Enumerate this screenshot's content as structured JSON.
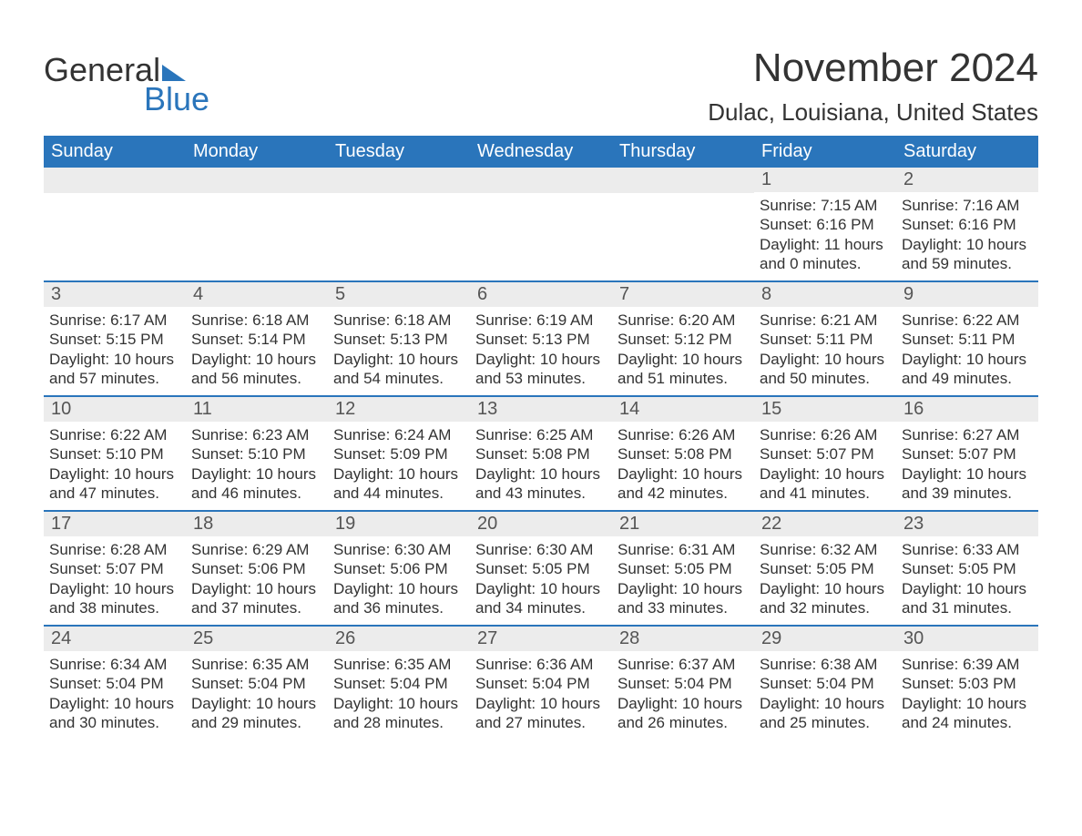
{
  "logo": {
    "text1": "General",
    "text2": "Blue",
    "accent_color": "#2a75bb"
  },
  "title": "November 2024",
  "location": "Dulac, Louisiana, United States",
  "colors": {
    "header_bg": "#2a75bb",
    "header_text": "#ffffff",
    "daynum_bg": "#ececec",
    "daynum_text": "#555555",
    "body_text": "#333333",
    "rule": "#2a75bb",
    "page_bg": "#ffffff"
  },
  "weekdays": [
    "Sunday",
    "Monday",
    "Tuesday",
    "Wednesday",
    "Thursday",
    "Friday",
    "Saturday"
  ],
  "weeks": [
    [
      {
        "n": "",
        "sunrise": "",
        "sunset": "",
        "daylight": ""
      },
      {
        "n": "",
        "sunrise": "",
        "sunset": "",
        "daylight": ""
      },
      {
        "n": "",
        "sunrise": "",
        "sunset": "",
        "daylight": ""
      },
      {
        "n": "",
        "sunrise": "",
        "sunset": "",
        "daylight": ""
      },
      {
        "n": "",
        "sunrise": "",
        "sunset": "",
        "daylight": ""
      },
      {
        "n": "1",
        "sunrise": "Sunrise: 7:15 AM",
        "sunset": "Sunset: 6:16 PM",
        "daylight": "Daylight: 11 hours and 0 minutes."
      },
      {
        "n": "2",
        "sunrise": "Sunrise: 7:16 AM",
        "sunset": "Sunset: 6:16 PM",
        "daylight": "Daylight: 10 hours and 59 minutes."
      }
    ],
    [
      {
        "n": "3",
        "sunrise": "Sunrise: 6:17 AM",
        "sunset": "Sunset: 5:15 PM",
        "daylight": "Daylight: 10 hours and 57 minutes."
      },
      {
        "n": "4",
        "sunrise": "Sunrise: 6:18 AM",
        "sunset": "Sunset: 5:14 PM",
        "daylight": "Daylight: 10 hours and 56 minutes."
      },
      {
        "n": "5",
        "sunrise": "Sunrise: 6:18 AM",
        "sunset": "Sunset: 5:13 PM",
        "daylight": "Daylight: 10 hours and 54 minutes."
      },
      {
        "n": "6",
        "sunrise": "Sunrise: 6:19 AM",
        "sunset": "Sunset: 5:13 PM",
        "daylight": "Daylight: 10 hours and 53 minutes."
      },
      {
        "n": "7",
        "sunrise": "Sunrise: 6:20 AM",
        "sunset": "Sunset: 5:12 PM",
        "daylight": "Daylight: 10 hours and 51 minutes."
      },
      {
        "n": "8",
        "sunrise": "Sunrise: 6:21 AM",
        "sunset": "Sunset: 5:11 PM",
        "daylight": "Daylight: 10 hours and 50 minutes."
      },
      {
        "n": "9",
        "sunrise": "Sunrise: 6:22 AM",
        "sunset": "Sunset: 5:11 PM",
        "daylight": "Daylight: 10 hours and 49 minutes."
      }
    ],
    [
      {
        "n": "10",
        "sunrise": "Sunrise: 6:22 AM",
        "sunset": "Sunset: 5:10 PM",
        "daylight": "Daylight: 10 hours and 47 minutes."
      },
      {
        "n": "11",
        "sunrise": "Sunrise: 6:23 AM",
        "sunset": "Sunset: 5:10 PM",
        "daylight": "Daylight: 10 hours and 46 minutes."
      },
      {
        "n": "12",
        "sunrise": "Sunrise: 6:24 AM",
        "sunset": "Sunset: 5:09 PM",
        "daylight": "Daylight: 10 hours and 44 minutes."
      },
      {
        "n": "13",
        "sunrise": "Sunrise: 6:25 AM",
        "sunset": "Sunset: 5:08 PM",
        "daylight": "Daylight: 10 hours and 43 minutes."
      },
      {
        "n": "14",
        "sunrise": "Sunrise: 6:26 AM",
        "sunset": "Sunset: 5:08 PM",
        "daylight": "Daylight: 10 hours and 42 minutes."
      },
      {
        "n": "15",
        "sunrise": "Sunrise: 6:26 AM",
        "sunset": "Sunset: 5:07 PM",
        "daylight": "Daylight: 10 hours and 41 minutes."
      },
      {
        "n": "16",
        "sunrise": "Sunrise: 6:27 AM",
        "sunset": "Sunset: 5:07 PM",
        "daylight": "Daylight: 10 hours and 39 minutes."
      }
    ],
    [
      {
        "n": "17",
        "sunrise": "Sunrise: 6:28 AM",
        "sunset": "Sunset: 5:07 PM",
        "daylight": "Daylight: 10 hours and 38 minutes."
      },
      {
        "n": "18",
        "sunrise": "Sunrise: 6:29 AM",
        "sunset": "Sunset: 5:06 PM",
        "daylight": "Daylight: 10 hours and 37 minutes."
      },
      {
        "n": "19",
        "sunrise": "Sunrise: 6:30 AM",
        "sunset": "Sunset: 5:06 PM",
        "daylight": "Daylight: 10 hours and 36 minutes."
      },
      {
        "n": "20",
        "sunrise": "Sunrise: 6:30 AM",
        "sunset": "Sunset: 5:05 PM",
        "daylight": "Daylight: 10 hours and 34 minutes."
      },
      {
        "n": "21",
        "sunrise": "Sunrise: 6:31 AM",
        "sunset": "Sunset: 5:05 PM",
        "daylight": "Daylight: 10 hours and 33 minutes."
      },
      {
        "n": "22",
        "sunrise": "Sunrise: 6:32 AM",
        "sunset": "Sunset: 5:05 PM",
        "daylight": "Daylight: 10 hours and 32 minutes."
      },
      {
        "n": "23",
        "sunrise": "Sunrise: 6:33 AM",
        "sunset": "Sunset: 5:05 PM",
        "daylight": "Daylight: 10 hours and 31 minutes."
      }
    ],
    [
      {
        "n": "24",
        "sunrise": "Sunrise: 6:34 AM",
        "sunset": "Sunset: 5:04 PM",
        "daylight": "Daylight: 10 hours and 30 minutes."
      },
      {
        "n": "25",
        "sunrise": "Sunrise: 6:35 AM",
        "sunset": "Sunset: 5:04 PM",
        "daylight": "Daylight: 10 hours and 29 minutes."
      },
      {
        "n": "26",
        "sunrise": "Sunrise: 6:35 AM",
        "sunset": "Sunset: 5:04 PM",
        "daylight": "Daylight: 10 hours and 28 minutes."
      },
      {
        "n": "27",
        "sunrise": "Sunrise: 6:36 AM",
        "sunset": "Sunset: 5:04 PM",
        "daylight": "Daylight: 10 hours and 27 minutes."
      },
      {
        "n": "28",
        "sunrise": "Sunrise: 6:37 AM",
        "sunset": "Sunset: 5:04 PM",
        "daylight": "Daylight: 10 hours and 26 minutes."
      },
      {
        "n": "29",
        "sunrise": "Sunrise: 6:38 AM",
        "sunset": "Sunset: 5:04 PM",
        "daylight": "Daylight: 10 hours and 25 minutes."
      },
      {
        "n": "30",
        "sunrise": "Sunrise: 6:39 AM",
        "sunset": "Sunset: 5:03 PM",
        "daylight": "Daylight: 10 hours and 24 minutes."
      }
    ]
  ]
}
